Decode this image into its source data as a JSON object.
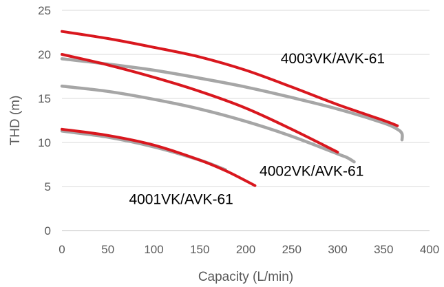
{
  "chart_data": {
    "type": "line",
    "title": "",
    "xlabel": "Capacity (L/min)",
    "ylabel": "THD (m)",
    "xlim": [
      0,
      400
    ],
    "ylim": [
      0,
      25
    ],
    "xticks": [
      "0",
      "50",
      "100",
      "150",
      "200",
      "250",
      "300",
      "350",
      "400"
    ],
    "yticks": [
      "0",
      "5",
      "10",
      "15",
      "20",
      "25"
    ],
    "grid": "horizontal",
    "legend": "none",
    "colors": {
      "red": "#d9171e",
      "gray": "#a6a6a6"
    },
    "annotations": [
      {
        "text": "4003VK/AVK-61",
        "x": 238,
        "y": 19
      },
      {
        "text": "4002VK/AVK-61",
        "x": 215,
        "y": 6.2
      },
      {
        "text": "4001VK/AVK-61",
        "x": 73,
        "y": 3.0
      }
    ],
    "series": [
      {
        "color": "red",
        "x": [
          0,
          50,
          100,
          150,
          200,
          250,
          300,
          350,
          365
        ],
        "y": [
          22.6,
          21.8,
          20.8,
          19.7,
          18.2,
          16.3,
          14.3,
          12.5,
          11.9
        ]
      },
      {
        "color": "gray",
        "x": [
          0,
          50,
          100,
          150,
          200,
          250,
          300,
          350,
          365,
          370,
          370
        ],
        "y": [
          19.5,
          18.9,
          18.2,
          17.3,
          16.3,
          15.1,
          13.8,
          12.2,
          11.5,
          11.0,
          10.3
        ]
      },
      {
        "color": "red",
        "x": [
          0,
          50,
          100,
          150,
          200,
          250,
          300
        ],
        "y": [
          20.0,
          18.8,
          17.4,
          15.8,
          13.9,
          11.5,
          8.9
        ]
      },
      {
        "color": "gray",
        "x": [
          0,
          50,
          100,
          150,
          200,
          250,
          300,
          310,
          318
        ],
        "y": [
          16.4,
          15.8,
          14.9,
          13.8,
          12.4,
          10.7,
          8.7,
          8.3,
          7.8
        ]
      },
      {
        "color": "red",
        "x": [
          0,
          50,
          100,
          150,
          180,
          210
        ],
        "y": [
          11.5,
          10.8,
          9.7,
          8.0,
          6.7,
          5.1
        ]
      },
      {
        "color": "gray",
        "x": [
          0,
          50,
          100,
          150,
          178
        ],
        "y": [
          11.3,
          10.6,
          9.5,
          8.0,
          6.9
        ]
      }
    ]
  }
}
